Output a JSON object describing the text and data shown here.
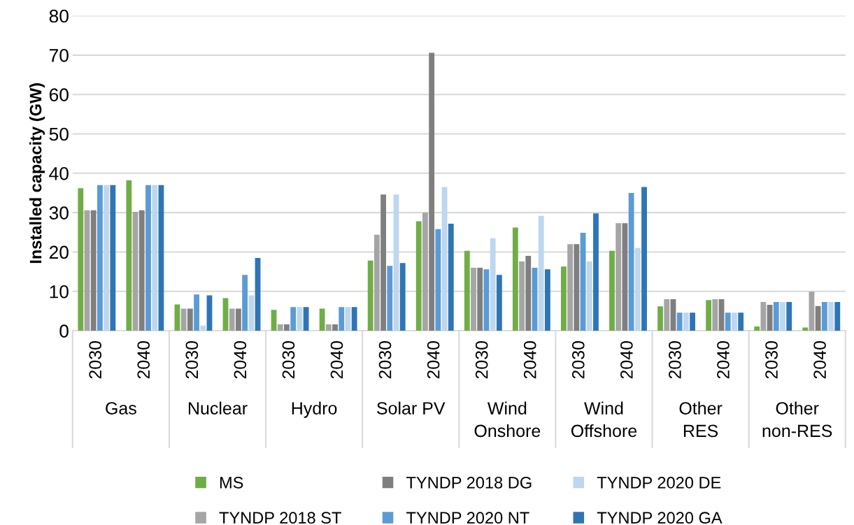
{
  "chart_data": {
    "type": "bar",
    "ylabel": "Installed capacity (GW)",
    "categories": [
      "2030",
      "2040",
      "2030",
      "2040",
      "2030",
      "2040",
      "2030",
      "2040",
      "2030",
      "2040",
      "2030",
      "2040",
      "2030",
      "2040",
      "2030",
      "2040"
    ],
    "annotations": [
      "Gas",
      "Nuclear",
      "Hydro",
      "Solar PV",
      "Wind Onshore",
      "Wind Offshore",
      "Other RES",
      "Other non-RES"
    ],
    "series": [
      {
        "name": "MS",
        "color": "#70ad47",
        "values": [
          36.2,
          38.2,
          6.7,
          8.3,
          5.3,
          5.6,
          17.8,
          27.8,
          20.3,
          26.2,
          16.3,
          20.3,
          6.2,
          7.8,
          1.1,
          0.8
        ]
      },
      {
        "name": "TYNDP 2018 ST",
        "color": "#a5a5a5",
        "values": [
          30.6,
          30.2,
          5.6,
          5.6,
          1.6,
          1.6,
          24.4,
          30,
          16,
          17.6,
          22,
          27.3,
          8,
          8,
          7.3,
          9.9
        ]
      },
      {
        "name": "TYNDP 2018 DG",
        "color": "#7f7f7f",
        "values": [
          30.6,
          30.6,
          5.6,
          5.6,
          1.6,
          1.6,
          34.6,
          70.6,
          16,
          19,
          22,
          27.3,
          8,
          8,
          6.6,
          6.3
        ]
      },
      {
        "name": "TYNDP 2020 NT",
        "color": "#5b9bd5",
        "values": [
          37,
          37,
          9.2,
          14.2,
          6,
          6,
          16.5,
          25.8,
          15.6,
          16,
          24.9,
          35,
          4.6,
          4.6,
          7.3,
          7.3
        ]
      },
      {
        "name": "TYNDP 2020 DE",
        "color": "#bdd7ee",
        "values": [
          37,
          37,
          1.3,
          9,
          6,
          6,
          34.6,
          36.5,
          23.5,
          29.2,
          17.6,
          21,
          4.6,
          4.6,
          7.3,
          7.3
        ]
      },
      {
        "name": "TYNDP 2020 GA",
        "color": "#2e75b6",
        "values": [
          37,
          37,
          9,
          18.5,
          6,
          6,
          17.2,
          27.2,
          14.2,
          15.6,
          29.8,
          36.5,
          4.6,
          4.6,
          7.3,
          7.3
        ]
      }
    ],
    "ylim": [
      0,
      80
    ],
    "yticks": [
      0,
      10,
      20,
      30,
      40,
      50,
      60,
      70,
      80
    ],
    "grid": "y",
    "legend": "bottom"
  }
}
